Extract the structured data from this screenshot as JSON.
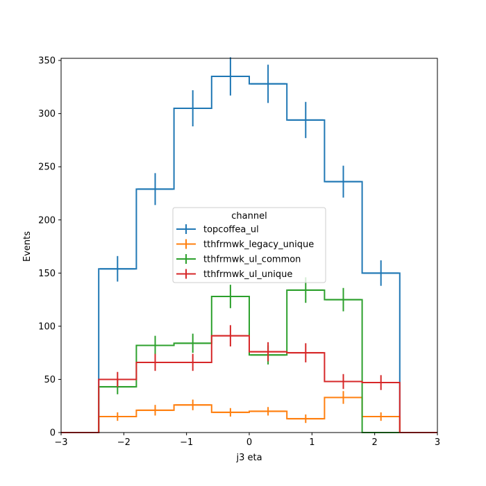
{
  "chart_data": {
    "type": "step-histogram",
    "xlabel": "j3 eta",
    "ylabel": "Events",
    "xlim": [
      -3,
      3
    ],
    "ylim": [
      0,
      352
    ],
    "xticks": [
      -3,
      -2,
      -1,
      0,
      1,
      2,
      3
    ],
    "yticks": [
      0,
      50,
      100,
      150,
      200,
      250,
      300,
      350
    ],
    "grid": false,
    "bin_edges": [
      -2.4,
      -1.8,
      -1.2,
      -0.6,
      0,
      0.6,
      1.2,
      1.8,
      2.4
    ],
    "legend": {
      "title": "channel",
      "placement": "center"
    },
    "series": [
      {
        "name": "topcoffea_ul",
        "color": "#1f77b4",
        "values": [
          154,
          229,
          305,
          335,
          328,
          294,
          236,
          150
        ],
        "errors": [
          12,
          15,
          17,
          18,
          18,
          17,
          15,
          12
        ]
      },
      {
        "name": "tthfrmwk_legacy_unique",
        "color": "#ff7f0e",
        "values": [
          15,
          21,
          26,
          19,
          20,
          13,
          33,
          15
        ],
        "errors": [
          4,
          5,
          5,
          4,
          4,
          4,
          6,
          4
        ]
      },
      {
        "name": "tthfrmwk_ul_common",
        "color": "#2ca02c",
        "values": [
          43,
          82,
          84,
          128,
          73,
          134,
          125,
          0
        ],
        "errors": [
          7,
          9,
          9,
          11,
          9,
          12,
          11,
          0
        ]
      },
      {
        "name": "tthfrmwk_ul_unique",
        "color": "#d62728",
        "values": [
          50,
          66,
          66,
          91,
          76,
          75,
          48,
          47
        ],
        "errors": [
          7,
          8,
          8,
          10,
          9,
          9,
          7,
          7
        ]
      }
    ]
  }
}
